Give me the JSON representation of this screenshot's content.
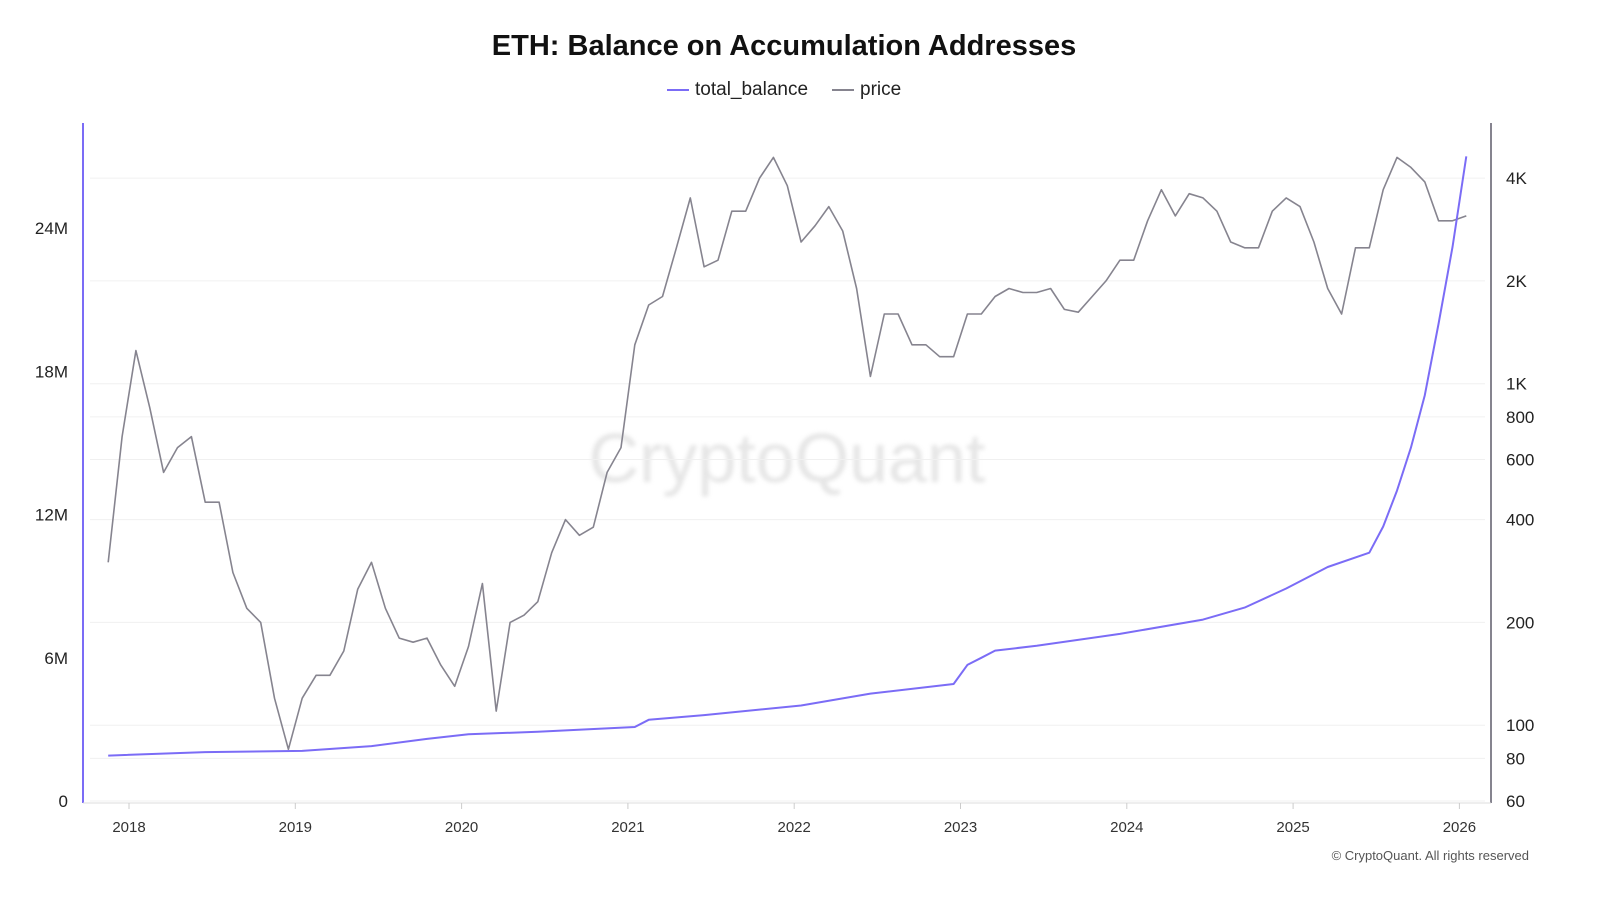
{
  "chart_data": {
    "type": "line",
    "title": "ETH: Balance on Accumulation Addresses",
    "watermark": "CryptoQuant",
    "footer": "© CryptoQuant. All rights reserved",
    "legend": {
      "placement": "top-center",
      "entries": [
        "total_balance",
        "price"
      ]
    },
    "grid": true,
    "x_ticks": [
      "2018",
      "2019",
      "2020",
      "2021",
      "2022",
      "2023",
      "2024",
      "2025",
      "2026"
    ],
    "y_left": {
      "ticks": [
        "0",
        "6M",
        "12M",
        "18M",
        "24M"
      ],
      "tick_values": [
        0,
        6000000,
        12000000,
        18000000,
        24000000
      ],
      "ylim": [
        0,
        28400000
      ],
      "scale": "linear"
    },
    "y_right": {
      "ticks": [
        "60",
        "80",
        "100",
        "200",
        "400",
        "600",
        "800",
        "1K",
        "2K",
        "4K"
      ],
      "tick_values": [
        60,
        80,
        100,
        200,
        400,
        600,
        800,
        1000,
        2000,
        4000
      ],
      "ylim": [
        60,
        5800
      ],
      "scale": "log"
    },
    "series": [
      {
        "name": "total_balance",
        "axis": "left",
        "color": "#7b6cf6",
        "points": [
          [
            "2017-11",
            1900000
          ],
          [
            "2018-06",
            2050000
          ],
          [
            "2019-01",
            2100000
          ],
          [
            "2019-06",
            2300000
          ],
          [
            "2019-10",
            2600000
          ],
          [
            "2020-01",
            2800000
          ],
          [
            "2020-06",
            2900000
          ],
          [
            "2021-01",
            3100000
          ],
          [
            "2021-02",
            3400000
          ],
          [
            "2021-06",
            3600000
          ],
          [
            "2022-01",
            4000000
          ],
          [
            "2022-06",
            4500000
          ],
          [
            "2022-12",
            4900000
          ],
          [
            "2023-01",
            5700000
          ],
          [
            "2023-02",
            6000000
          ],
          [
            "2023-03",
            6300000
          ],
          [
            "2023-06",
            6500000
          ],
          [
            "2023-12",
            7000000
          ],
          [
            "2024-06",
            7600000
          ],
          [
            "2024-09",
            8100000
          ],
          [
            "2024-12",
            8900000
          ],
          [
            "2025-03",
            9800000
          ],
          [
            "2025-06",
            10400000
          ],
          [
            "2025-07",
            11500000
          ],
          [
            "2025-08",
            13000000
          ],
          [
            "2025-09",
            14800000
          ],
          [
            "2025-10",
            17000000
          ],
          [
            "2025-11",
            20000000
          ],
          [
            "2025-12",
            23200000
          ],
          [
            "2026-01",
            27000000
          ]
        ]
      },
      {
        "name": "price",
        "axis": "right",
        "color": "#86848f",
        "points": [
          [
            "2017-11",
            300
          ],
          [
            "2017-12",
            700
          ],
          [
            "2018-01",
            1250
          ],
          [
            "2018-02",
            850
          ],
          [
            "2018-03",
            550
          ],
          [
            "2018-04",
            650
          ],
          [
            "2018-05",
            700
          ],
          [
            "2018-06",
            450
          ],
          [
            "2018-07",
            450
          ],
          [
            "2018-08",
            280
          ],
          [
            "2018-09",
            220
          ],
          [
            "2018-10",
            200
          ],
          [
            "2018-11",
            120
          ],
          [
            "2018-12",
            85
          ],
          [
            "2019-01",
            120
          ],
          [
            "2019-02",
            140
          ],
          [
            "2019-03",
            140
          ],
          [
            "2019-04",
            165
          ],
          [
            "2019-05",
            250
          ],
          [
            "2019-06",
            300
          ],
          [
            "2019-07",
            220
          ],
          [
            "2019-08",
            180
          ],
          [
            "2019-09",
            175
          ],
          [
            "2019-10",
            180
          ],
          [
            "2019-11",
            150
          ],
          [
            "2019-12",
            130
          ],
          [
            "2020-01",
            170
          ],
          [
            "2020-02",
            260
          ],
          [
            "2020-03",
            110
          ],
          [
            "2020-04",
            200
          ],
          [
            "2020-05",
            210
          ],
          [
            "2020-06",
            230
          ],
          [
            "2020-07",
            320
          ],
          [
            "2020-08",
            400
          ],
          [
            "2020-09",
            360
          ],
          [
            "2020-10",
            380
          ],
          [
            "2020-11",
            550
          ],
          [
            "2020-12",
            650
          ],
          [
            "2021-01",
            1300
          ],
          [
            "2021-02",
            1700
          ],
          [
            "2021-03",
            1800
          ],
          [
            "2021-04",
            2500
          ],
          [
            "2021-05",
            3500
          ],
          [
            "2021-06",
            2200
          ],
          [
            "2021-07",
            2300
          ],
          [
            "2021-08",
            3200
          ],
          [
            "2021-09",
            3200
          ],
          [
            "2021-10",
            4000
          ],
          [
            "2021-11",
            4600
          ],
          [
            "2021-12",
            3800
          ],
          [
            "2022-01",
            2600
          ],
          [
            "2022-02",
            2900
          ],
          [
            "2022-03",
            3300
          ],
          [
            "2022-04",
            2800
          ],
          [
            "2022-05",
            1900
          ],
          [
            "2022-06",
            1050
          ],
          [
            "2022-07",
            1600
          ],
          [
            "2022-08",
            1600
          ],
          [
            "2022-09",
            1300
          ],
          [
            "2022-10",
            1300
          ],
          [
            "2022-11",
            1200
          ],
          [
            "2022-12",
            1200
          ],
          [
            "2023-01",
            1600
          ],
          [
            "2023-02",
            1600
          ],
          [
            "2023-03",
            1800
          ],
          [
            "2023-04",
            1900
          ],
          [
            "2023-05",
            1850
          ],
          [
            "2023-06",
            1850
          ],
          [
            "2023-07",
            1900
          ],
          [
            "2023-08",
            1650
          ],
          [
            "2023-09",
            1620
          ],
          [
            "2023-10",
            1800
          ],
          [
            "2023-11",
            2000
          ],
          [
            "2023-12",
            2300
          ],
          [
            "2024-01",
            2300
          ],
          [
            "2024-02",
            3000
          ],
          [
            "2024-03",
            3700
          ],
          [
            "2024-04",
            3100
          ],
          [
            "2024-05",
            3600
          ],
          [
            "2024-06",
            3500
          ],
          [
            "2024-07",
            3200
          ],
          [
            "2024-08",
            2600
          ],
          [
            "2024-09",
            2500
          ],
          [
            "2024-10",
            2500
          ],
          [
            "2024-11",
            3200
          ],
          [
            "2024-12",
            3500
          ],
          [
            "2025-01",
            3300
          ],
          [
            "2025-02",
            2600
          ],
          [
            "2025-03",
            1900
          ],
          [
            "2025-04",
            1600
          ],
          [
            "2025-05",
            2500
          ],
          [
            "2025-06",
            2500
          ],
          [
            "2025-07",
            3700
          ],
          [
            "2025-08",
            4600
          ],
          [
            "2025-09",
            4300
          ],
          [
            "2025-10",
            3900
          ],
          [
            "2025-11",
            3000
          ],
          [
            "2025-12",
            3000
          ],
          [
            "2026-01",
            3100
          ]
        ]
      }
    ]
  }
}
